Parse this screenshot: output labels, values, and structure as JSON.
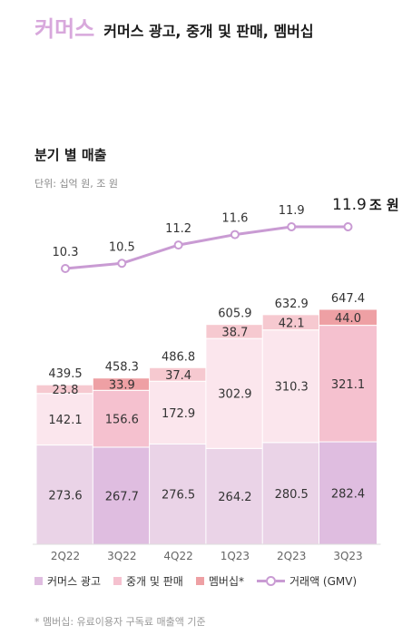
{
  "header": {
    "brand": "커머스",
    "title": "커머스 광고, 중개 및 판매, 멤버십"
  },
  "section_title": "분기 별 매출",
  "unit_note": "단위: 십억 원, 조 원",
  "gmv_callout": {
    "value": "11.9",
    "unit": "조 원"
  },
  "legend": {
    "ads": "커머스 광고",
    "brokerage": "중개 및 판매",
    "membership": "멤버십*",
    "gmv": "거래액 (GMV)"
  },
  "footnote": "* 멤버십: 유료이용자 구독료 매출액 기준",
  "colors": {
    "ads": "#ead3e7",
    "ads_highlight": "#dfbde0",
    "brokerage": "#fbe6ed",
    "brokerage_highlight": "#f5c1cf",
    "membership": "#f6c9d0",
    "membership_highlight": "#eea0a4",
    "gmv_line": "#c99bd3"
  },
  "chart_data": {
    "type": "bar",
    "stacked": true,
    "categories": [
      "2Q22",
      "3Q22",
      "4Q22",
      "1Q23",
      "2Q23",
      "3Q23"
    ],
    "series": [
      {
        "name": "커머스 광고",
        "values": [
          273.6,
          267.7,
          276.5,
          264.2,
          280.5,
          282.4
        ]
      },
      {
        "name": "중개 및 판매",
        "values": [
          142.1,
          156.6,
          172.9,
          302.9,
          310.3,
          321.1
        ]
      },
      {
        "name": "멤버십*",
        "values": [
          23.8,
          33.9,
          37.4,
          38.7,
          42.1,
          44.0
        ]
      }
    ],
    "totals": [
      439.5,
      458.3,
      486.8,
      605.9,
      632.9,
      647.4
    ],
    "line_series": {
      "name": "거래액 (GMV)",
      "values": [
        10.3,
        10.5,
        11.2,
        11.6,
        11.9,
        11.9
      ]
    },
    "highlighted_categories": [
      "3Q22",
      "3Q23"
    ]
  }
}
